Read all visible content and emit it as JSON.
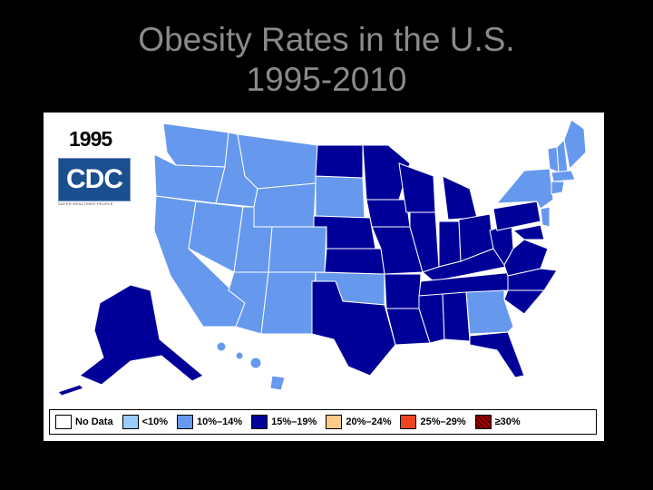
{
  "slide": {
    "title_line1": "Obesity Rates in the U.S.",
    "title_line2": "1995-2010"
  },
  "map": {
    "year": "1995",
    "logo_text": "CDC",
    "logo_tagline": "SAFER·HEALTHIER·PEOPLE",
    "icon": "us-states-map"
  },
  "legend": [
    {
      "label": "No Data",
      "color": "#ffffff"
    },
    {
      "label": "<10%",
      "color": "#99ccff"
    },
    {
      "label": "10%–14%",
      "color": "#6699ee"
    },
    {
      "label": "15%–19%",
      "color": "#000099"
    },
    {
      "label": "20%–24%",
      "color": "#ffcc88"
    },
    {
      "label": "25%–29%",
      "color": "#ee4422"
    },
    {
      "label": "≥30%",
      "color": "#aa0000"
    }
  ],
  "colors": {
    "light": "#6699ee",
    "dark": "#000099"
  }
}
